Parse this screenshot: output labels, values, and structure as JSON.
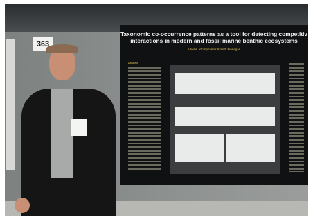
{
  "sign": "363",
  "poster": {
    "title_lines": [
      "Taxonomic co-occurrence patterns as a tool for detecting competitiv",
      "interactions in modern and fossil marine benthic ecosystems"
    ],
    "authors": "Adiël A. Klompmaker & Seth Finnegan",
    "abstract_heading": "Abstract"
  }
}
